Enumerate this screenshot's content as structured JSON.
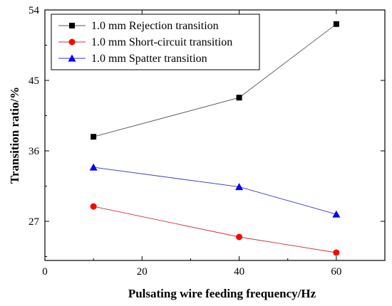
{
  "chart_data": {
    "type": "line",
    "xlabel": "Pulsating wire feeding frequency/Hz",
    "ylabel": "Transition ratio/%",
    "xlim": [
      0,
      70
    ],
    "ylim": [
      22,
      54
    ],
    "xticks": [
      0,
      20,
      40,
      60
    ],
    "yticks": [
      27,
      36,
      45,
      54
    ],
    "grid": false,
    "legend_position": "top-left",
    "series": [
      {
        "name": "1.0 mm Rejection transition",
        "marker": "square",
        "color": "#000000",
        "line_color": "#555555",
        "x": [
          10,
          40,
          60
        ],
        "y": [
          37.8,
          42.8,
          52.2
        ]
      },
      {
        "name": "1.0 mm Short-circuit transition",
        "marker": "circle",
        "color": "#ff0000",
        "line_color": "#cc3333",
        "x": [
          10,
          40,
          60
        ],
        "y": [
          28.9,
          25.0,
          23.0
        ]
      },
      {
        "name": "1.0 mm Spatter transition",
        "marker": "triangle",
        "color": "#0000ff",
        "line_color": "#3333cc",
        "x": [
          10,
          40,
          60
        ],
        "y": [
          33.9,
          31.4,
          27.9
        ]
      }
    ]
  }
}
